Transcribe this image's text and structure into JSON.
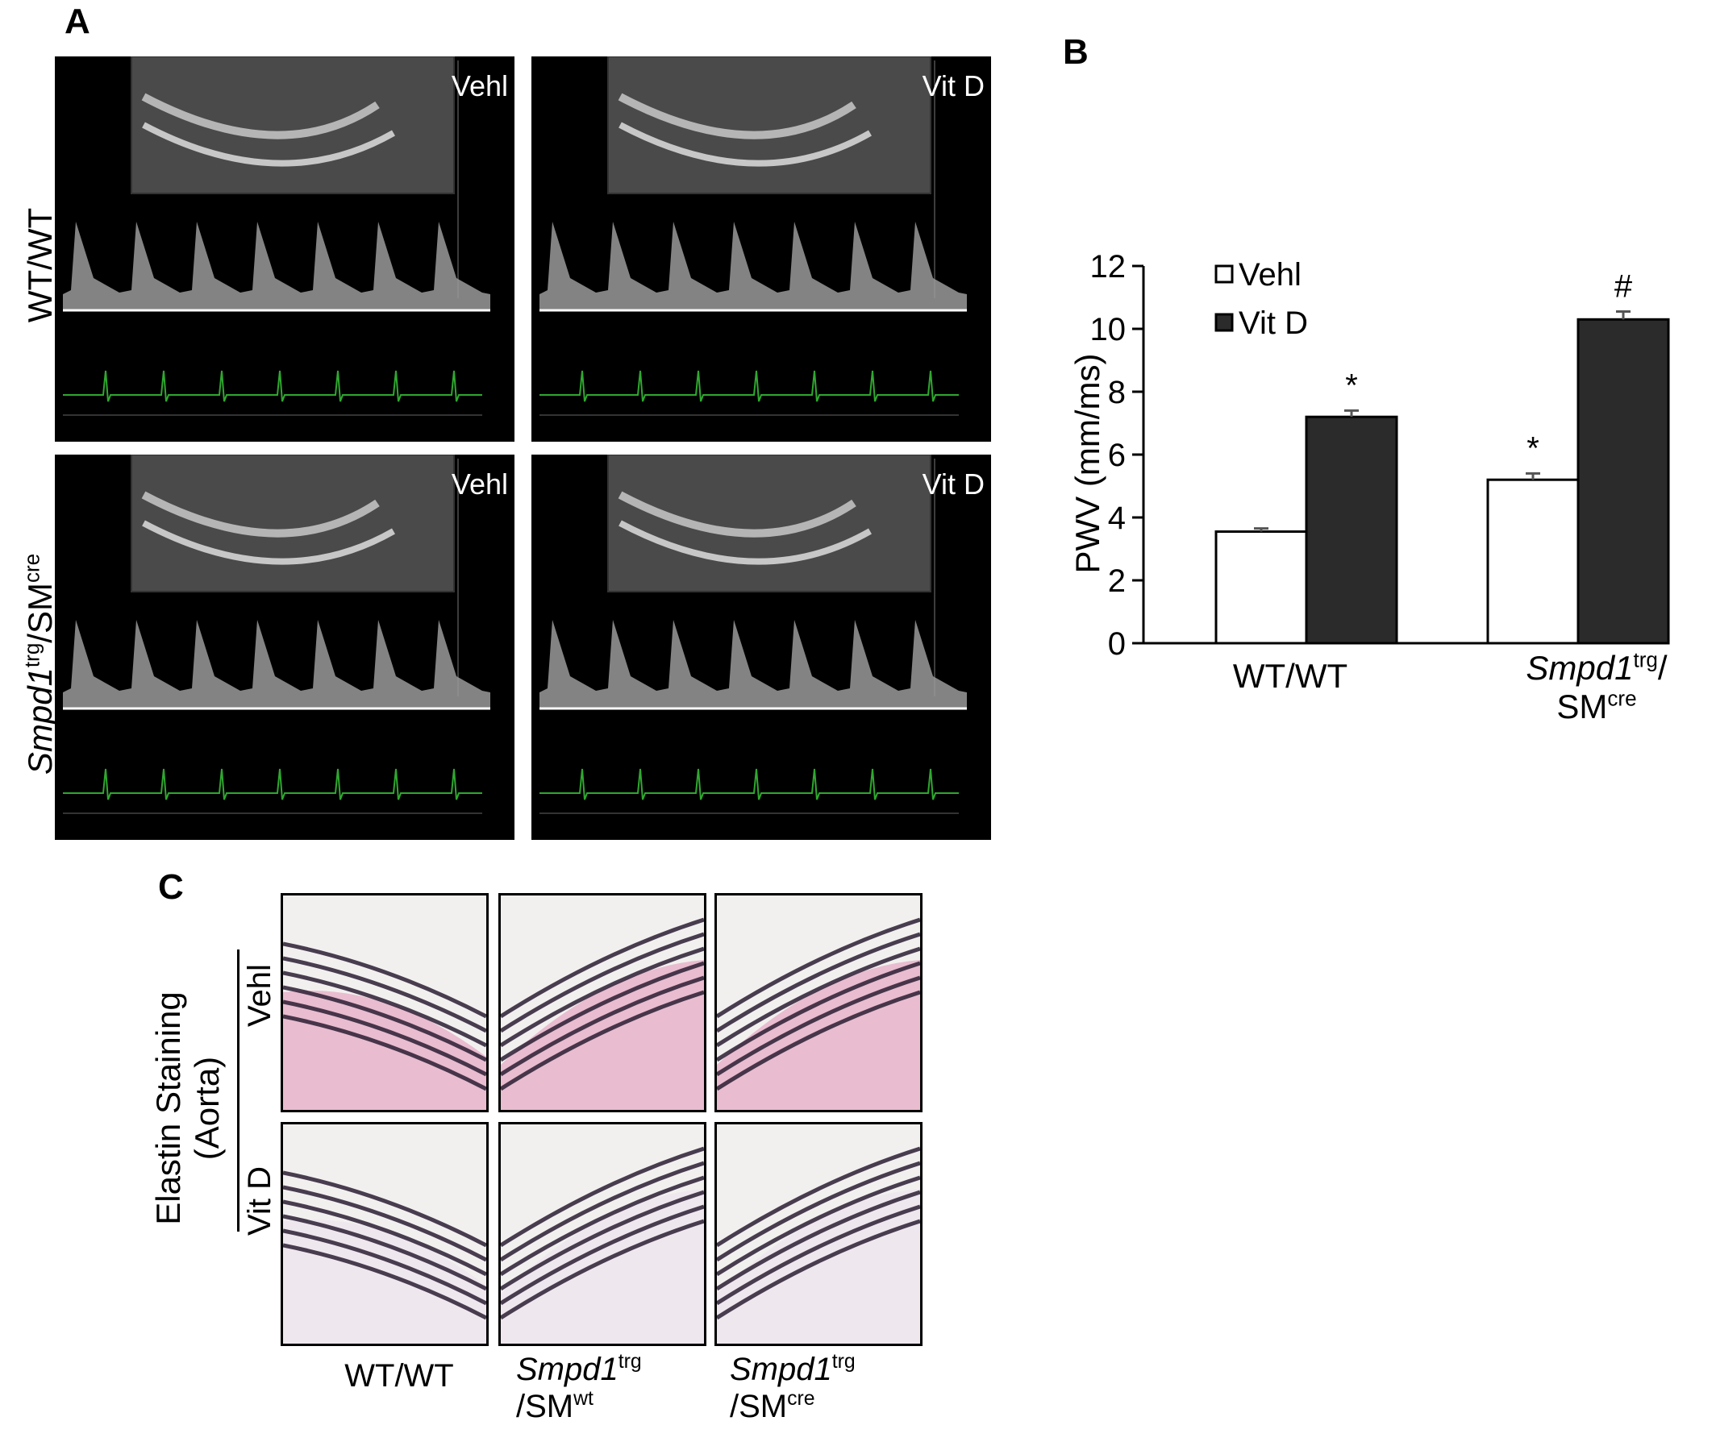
{
  "panels": {
    "A": {
      "letter": "A",
      "row_labels": [
        {
          "text": "WT/WT",
          "italic": "",
          "sup": "",
          "rest": ""
        },
        {
          "text": "",
          "italic": "Smpd1",
          "sup": "trg",
          "rest": "/SM",
          "sup2": "cre"
        }
      ],
      "images": [
        {
          "label": "Vehl"
        },
        {
          "label": "Vit D"
        },
        {
          "label": "Vehl"
        },
        {
          "label": "Vit D"
        }
      ]
    },
    "B": {
      "letter": "B"
    },
    "C": {
      "letter": "C",
      "side_title_line1": "Elastin Staining",
      "side_title_line2": "(Aorta)",
      "row_labels": [
        "Vehl",
        "Vit D"
      ],
      "col_labels": [
        {
          "line1": "WT/WT",
          "line2_base": "",
          "line2_sup": ""
        },
        {
          "italic": "Smpd1",
          "sup": "trg",
          "line2_base": "/SM",
          "line2_sup": "wt"
        },
        {
          "italic": "Smpd1",
          "sup": "trg",
          "line2_base": "/SM",
          "line2_sup": "cre"
        }
      ]
    }
  },
  "chart_data": {
    "type": "bar",
    "title": "",
    "ylabel": "PWV (mm/ms)",
    "xlabel": "",
    "ylim": [
      0,
      12
    ],
    "yticks": [
      "0",
      "2",
      "4",
      "6",
      "8",
      "10",
      "12"
    ],
    "categories": [
      "WT/WT",
      "Smpd1trg/SMcre"
    ],
    "category_labels": [
      {
        "line1": "WT/WT"
      },
      {
        "italic": "Smpd1",
        "sup": "trg",
        "after": "/",
        "line2_base": "SM",
        "line2_sup": "cre"
      }
    ],
    "series": [
      {
        "name": "Vehl",
        "values": [
          3.55,
          5.2
        ],
        "errors": [
          0.1,
          0.2
        ],
        "marks": [
          "",
          "*"
        ],
        "color": "#ffffff"
      },
      {
        "name": "Vit D",
        "values": [
          7.2,
          10.3
        ],
        "errors": [
          0.2,
          0.25
        ],
        "marks": [
          "*",
          "#"
        ],
        "color": "#2b2b2b"
      }
    ],
    "legend": "top-left",
    "grid": false
  }
}
